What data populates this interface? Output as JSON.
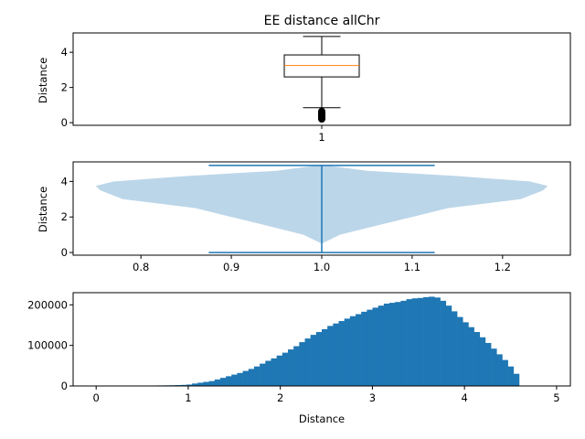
{
  "figure": {
    "title": "EE distance allChr"
  },
  "chart_data": [
    {
      "type": "box",
      "ylabel": "Distance",
      "xlabel": "",
      "xticks": [
        "1"
      ],
      "ylim": [
        -0.15,
        5.1
      ],
      "yticks": [
        0,
        2,
        4
      ],
      "box": {
        "whisker_low": 0.85,
        "q1": 2.6,
        "median": 3.25,
        "q3": 3.85,
        "whisker_high": 4.9,
        "outliers_range": [
          0.0,
          0.85
        ]
      },
      "colors": {
        "box": "#000000",
        "median": "#ff7f0e",
        "outliers": "#000000"
      }
    },
    {
      "type": "violin",
      "ylabel": "Distance",
      "xlabel": "",
      "xlim": [
        0.75,
        1.25
      ],
      "ylim": [
        -0.15,
        5.1
      ],
      "xticks": [
        "0.8",
        "0.9",
        "1.0",
        "1.1",
        "1.2"
      ],
      "yticks": [
        0,
        2,
        4
      ],
      "position": 1.0,
      "min": 0.0,
      "max": 4.9,
      "density_profile": [
        {
          "y": 0.5,
          "half_width": 0.0
        },
        {
          "y": 1.0,
          "half_width": 0.02
        },
        {
          "y": 1.5,
          "half_width": 0.06
        },
        {
          "y": 2.0,
          "half_width": 0.1
        },
        {
          "y": 2.5,
          "half_width": 0.14
        },
        {
          "y": 3.0,
          "half_width": 0.22
        },
        {
          "y": 3.5,
          "half_width": 0.245
        },
        {
          "y": 3.75,
          "half_width": 0.25
        },
        {
          "y": 4.0,
          "half_width": 0.23
        },
        {
          "y": 4.3,
          "half_width": 0.15
        },
        {
          "y": 4.6,
          "half_width": 0.05
        },
        {
          "y": 4.9,
          "half_width": 0.005
        }
      ],
      "colors": {
        "body": "#bcd6e9",
        "lines": "#1f77b4"
      }
    },
    {
      "type": "histogram",
      "xlabel": "Distance",
      "ylabel": "",
      "xlim": [
        -0.25,
        5.15
      ],
      "ylim": [
        0,
        230000
      ],
      "xticks": [
        0,
        1,
        2,
        3,
        4,
        5
      ],
      "yticks": [
        0,
        100000,
        200000
      ],
      "ytick_labels": [
        "0",
        "100000",
        "200000"
      ],
      "bin_start": 0.0,
      "bin_width": 0.06125,
      "counts": [
        0,
        0,
        0,
        0,
        0,
        0,
        600,
        800,
        900,
        1000,
        1200,
        1400,
        1600,
        1800,
        2200,
        2600,
        3500,
        6000,
        8000,
        10000,
        12000,
        16000,
        20000,
        24000,
        28000,
        32000,
        37000,
        42000,
        48000,
        55000,
        62000,
        68000,
        75000,
        82000,
        90000,
        98000,
        108000,
        117000,
        126000,
        133000,
        140000,
        148000,
        154000,
        160000,
        166000,
        172000,
        177000,
        183000,
        188000,
        193000,
        198000,
        203000,
        205000,
        207000,
        210000,
        214000,
        216000,
        217000,
        219000,
        220000,
        218000,
        210000,
        198000,
        184000,
        170000,
        157000,
        145000,
        133000,
        120000,
        106000,
        92000,
        78000,
        64000,
        48000,
        30000
      ],
      "colors": {
        "bars": "#1f77b4"
      }
    }
  ]
}
